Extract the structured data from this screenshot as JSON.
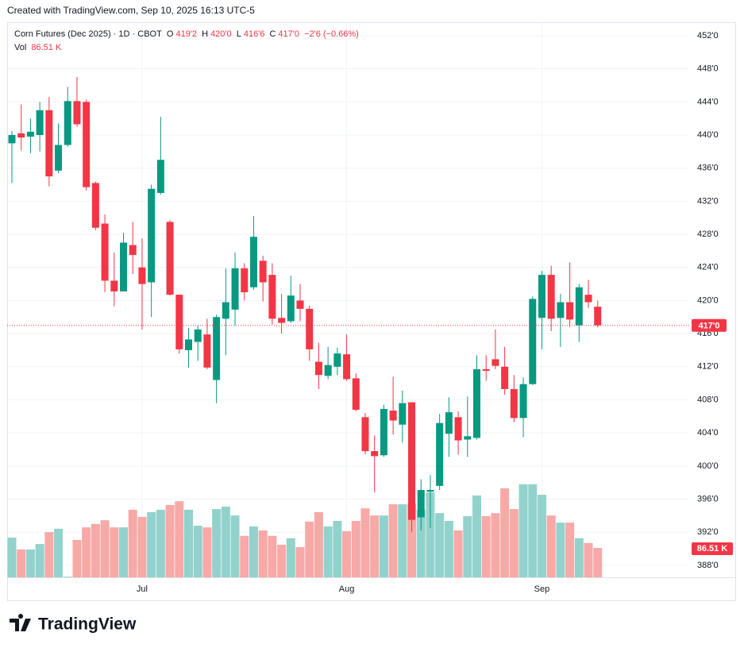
{
  "created_with": "Created with TradingView.com, Sep 10, 2025 16:13 UTC-5",
  "logo": "TradingView",
  "chart_data": {
    "type": "candlestick",
    "title": "Corn Futures (Dec 2025) · 1D · CBOT",
    "ohlc_labels": [
      "O",
      "H",
      "L",
      "C"
    ],
    "ohlc_values": [
      "419'2",
      "420'0",
      "416'6",
      "417'0"
    ],
    "change": "−2'6 (−0.66%)",
    "volume_label": "Vol",
    "volume_value": "86.51 K",
    "categories": [
      null,
      null,
      null,
      null,
      null,
      null,
      null,
      null,
      null,
      null,
      null,
      null,
      null,
      null,
      "Jul",
      null,
      null,
      null,
      null,
      null,
      null,
      null,
      null,
      null,
      null,
      null,
      null,
      null,
      null,
      null,
      null,
      null,
      null,
      null,
      null,
      null,
      "Aug",
      null,
      null,
      null,
      null,
      null,
      null,
      null,
      null,
      null,
      null,
      null,
      null,
      null,
      null,
      null,
      null,
      null,
      null,
      null,
      null,
      "Sep",
      null,
      null,
      null,
      null,
      null,
      null
    ],
    "open": [
      439,
      440.2,
      439.8,
      440,
      443,
      435.7,
      438.8,
      444.1,
      444,
      434.2,
      429.3,
      422.4,
      421.1,
      426.7,
      424,
      422.2,
      433,
      429.5,
      420.7,
      414,
      415,
      415.9,
      410.4,
      417.8,
      418.9,
      423.9,
      421.6,
      424.8,
      423.1,
      417.9,
      417.5,
      420,
      419,
      412.6,
      410.9,
      412,
      413.5,
      410.6,
      405.9,
      401.8,
      401.3,
      406.7,
      405,
      407.7,
      393.8,
      396.9,
      397.6,
      403.9,
      405.9,
      403.2,
      403.4,
      411.7,
      412.9,
      412,
      409.3,
      405.8,
      409.9,
      417.9,
      423.1,
      417.9,
      419.8,
      417,
      420.7,
      419.25
    ],
    "high": [
      440.5,
      443.7,
      442,
      444,
      444.6,
      441.4,
      445.8,
      447,
      444.3,
      434.4,
      430.4,
      425.8,
      428.2,
      429.5,
      427.5,
      434,
      442.2,
      429.7,
      420.7,
      416.7,
      417,
      417.8,
      418.3,
      423.9,
      425.8,
      424.5,
      430.2,
      425.4,
      424.5,
      420.8,
      423,
      422,
      419.4,
      414.9,
      414.4,
      414.3,
      415.9,
      411.2,
      406.4,
      403.7,
      407.4,
      410.8,
      409.1,
      407.7,
      398.4,
      398.9,
      406.3,
      408.3,
      406.6,
      408.4,
      413.4,
      413.4,
      416.5,
      414.4,
      411,
      410.7,
      420.5,
      423.6,
      424.2,
      420.8,
      424.6,
      422,
      422.5,
      420
    ],
    "low": [
      434.2,
      438.1,
      437.8,
      438,
      433.8,
      435.4,
      438.6,
      441,
      433.3,
      428.5,
      421,
      419.3,
      421.1,
      423.2,
      416.5,
      418,
      432.8,
      420.6,
      413.6,
      411.9,
      412.7,
      411.7,
      407.6,
      413.4,
      417,
      420,
      421.3,
      419.9,
      417.1,
      416,
      417.3,
      417.5,
      412.7,
      409.3,
      410.5,
      411,
      410.3,
      406.6,
      401.4,
      396.8,
      401.1,
      403.8,
      402.8,
      392,
      392.2,
      392.5,
      397.1,
      401.1,
      401.4,
      401.1,
      403.2,
      410.3,
      411.7,
      408.6,
      405.3,
      403.5,
      409.8,
      414.1,
      416.3,
      414.4,
      416.8,
      415,
      419.1,
      416.75
    ],
    "close": [
      440,
      439.7,
      440.4,
      443,
      435,
      438.8,
      444.1,
      441.3,
      433.7,
      428.8,
      422.4,
      421.1,
      427,
      425.5,
      422,
      433.5,
      437,
      420.7,
      414.1,
      415.3,
      416.5,
      411.9,
      418,
      419.8,
      423.9,
      421,
      427.7,
      422.2,
      417.8,
      417.3,
      420.6,
      419,
      414.1,
      411,
      412.2,
      413.6,
      410.5,
      406.8,
      401.8,
      401.2,
      406.9,
      405.5,
      407.6,
      393.5,
      397.1,
      397.1,
      405.2,
      406.5,
      403.1,
      403.6,
      411.7,
      411.5,
      412.1,
      409.3,
      405.8,
      409.9,
      420.2,
      423.1,
      417.8,
      419.8,
      417.7,
      421.6,
      419.8,
      417
    ],
    "volume": [
      117,
      82,
      82,
      98,
      133,
      143,
      2,
      110,
      147,
      157,
      168,
      147,
      147,
      199,
      178,
      192,
      199,
      213,
      224,
      199,
      152,
      147,
      201,
      208,
      182,
      122,
      150,
      138,
      122,
      96,
      115,
      89,
      164,
      192,
      150,
      166,
      136,
      166,
      203,
      182,
      182,
      215,
      215,
      217,
      199,
      250,
      189,
      166,
      138,
      180,
      241,
      180,
      189,
      262,
      201,
      274,
      274,
      243,
      182,
      161,
      161,
      115,
      101,
      86.51
    ],
    "up_color": "#089981",
    "down_color": "#f23645",
    "volume_up_color": "#92d2cc",
    "volume_down_color": "#f7a9a7",
    "ylim": [
      386.55,
      453.63
    ],
    "volume_lim": [
      0,
      1634
    ],
    "yticks": [
      {
        "value": 452,
        "label": "452'0"
      },
      {
        "value": 448,
        "label": "448'0"
      },
      {
        "value": 444,
        "label": "444'0"
      },
      {
        "value": 440,
        "label": "440'0"
      },
      {
        "value": 436,
        "label": "436'0"
      },
      {
        "value": 432,
        "label": "432'0"
      },
      {
        "value": 428,
        "label": "428'0"
      },
      {
        "value": 424,
        "label": "424'0"
      },
      {
        "value": 420,
        "label": "420'0"
      },
      {
        "value": 416,
        "label": "416'0"
      },
      {
        "value": 412,
        "label": "412'0"
      },
      {
        "value": 408,
        "label": "408'0"
      },
      {
        "value": 404,
        "label": "404'0"
      },
      {
        "value": 400,
        "label": "400'0"
      },
      {
        "value": 396,
        "label": "396'0"
      },
      {
        "value": 392,
        "label": "392'0"
      },
      {
        "value": 388,
        "label": "388'0"
      }
    ],
    "last_price": {
      "value": 417,
      "label": "417'0"
    },
    "last_volume": {
      "value": 86.51,
      "label": "86.51 K"
    },
    "grid": true
  }
}
